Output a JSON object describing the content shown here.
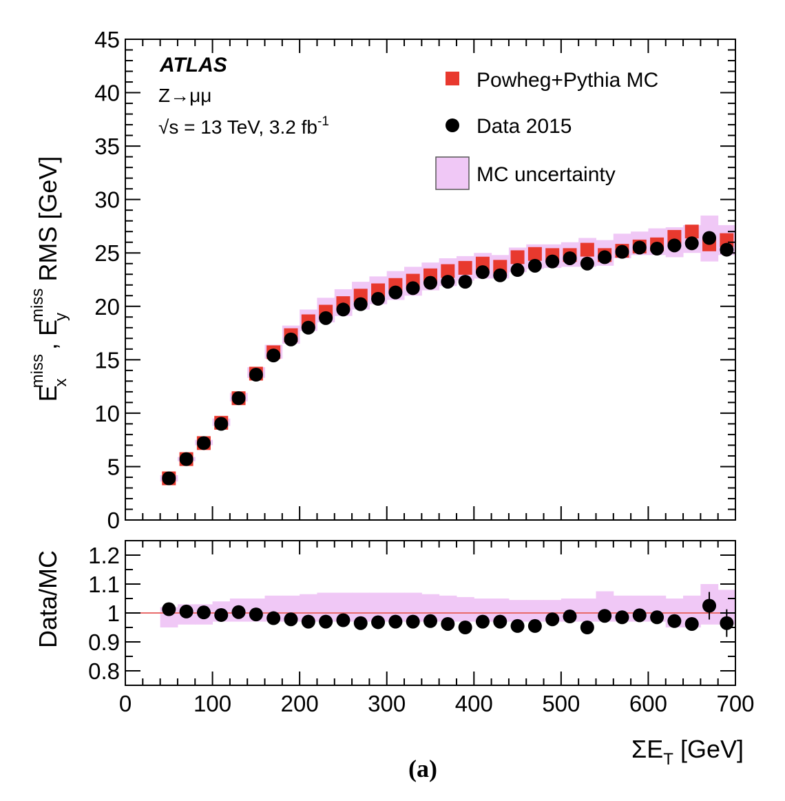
{
  "chart_data": [
    {
      "type": "scatter",
      "panel": "main",
      "ylabel": "E_x^miss , E_y^miss RMS [GeV]",
      "ylabel_parts": {
        "e1": "E",
        "e1_sub": "x",
        "e1_sup": "miss",
        "sep": ",",
        "e2": "E",
        "e2_sub": "y",
        "e2_sup": "miss",
        "suffix": "RMS [GeV]"
      },
      "xlim": [
        0,
        700
      ],
      "ylim": [
        0,
        45
      ],
      "x_ticks": [
        "0",
        "100",
        "200",
        "300",
        "400",
        "500",
        "600",
        "700"
      ],
      "y_ticks": [
        "0",
        "5",
        "10",
        "15",
        "20",
        "25",
        "30",
        "35",
        "40",
        "45"
      ],
      "x": [
        50,
        70,
        90,
        110,
        130,
        150,
        170,
        190,
        210,
        230,
        250,
        270,
        290,
        310,
        330,
        350,
        370,
        390,
        410,
        430,
        450,
        470,
        490,
        510,
        530,
        550,
        570,
        590,
        610,
        630,
        650,
        670,
        690
      ],
      "bin_width": 20,
      "annotations": {
        "experiment": "ATLAS",
        "process": "Z→μμ",
        "energy_prefix": "√s = 13 TeV, 3.2 fb",
        "energy_sup": "-1"
      },
      "series": [
        {
          "name": "Powheg+Pythia MC",
          "marker": "square",
          "color": "#e8392e",
          "values": [
            3.9,
            5.7,
            7.2,
            9.1,
            11.4,
            13.7,
            15.7,
            17.3,
            18.6,
            19.5,
            20.3,
            21.0,
            21.5,
            22.0,
            22.4,
            22.9,
            23.3,
            23.6,
            24.0,
            23.7,
            24.6,
            24.9,
            24.8,
            24.8,
            25.3,
            24.8,
            25.2,
            25.6,
            25.8,
            26.5,
            27.0,
            25.8,
            26.2
          ]
        },
        {
          "name": "Data 2015",
          "marker": "circle",
          "color": "#000000",
          "values": [
            3.9,
            5.7,
            7.2,
            9.0,
            11.4,
            13.6,
            15.4,
            16.9,
            18.0,
            18.9,
            19.7,
            20.2,
            20.7,
            21.3,
            21.7,
            22.2,
            22.3,
            22.3,
            23.2,
            22.9,
            23.4,
            23.8,
            24.2,
            24.5,
            24.0,
            24.6,
            25.1,
            25.5,
            25.4,
            25.7,
            25.9,
            26.4,
            25.3
          ]
        },
        {
          "name": "MC uncertainty",
          "marker": "band",
          "color": "#f0c8f6",
          "low": [
            3.6,
            5.5,
            7.0,
            8.8,
            11.1,
            13.3,
            15.1,
            16.5,
            17.7,
            18.5,
            19.1,
            19.7,
            20.2,
            20.6,
            21.0,
            21.5,
            21.9,
            22.4,
            22.6,
            22.6,
            23.2,
            23.5,
            23.6,
            23.7,
            23.7,
            23.8,
            24.5,
            24.8,
            24.8,
            24.6,
            25.0,
            24.2,
            24.8
          ],
          "high": [
            4.2,
            5.9,
            7.5,
            9.5,
            11.9,
            14.3,
            16.4,
            18.2,
            19.7,
            20.8,
            21.6,
            22.3,
            22.8,
            23.3,
            23.7,
            24.1,
            24.5,
            24.7,
            25.0,
            24.8,
            25.5,
            25.8,
            25.8,
            26.0,
            26.4,
            26.2,
            26.8,
            27.0,
            27.3,
            27.4,
            27.6,
            28.5,
            27.6
          ]
        }
      ],
      "legend": {
        "position": "top-right",
        "entries": [
          "Powheg+Pythia MC",
          "Data 2015",
          "MC uncertainty"
        ]
      }
    },
    {
      "type": "scatter",
      "panel": "ratio",
      "xlabel": "ΣE_T [GeV]",
      "xlabel_parts": {
        "main": "ΣE",
        "sub": "T",
        "suffix": "[GeV]"
      },
      "ylabel": "Data/MC",
      "xlim": [
        0,
        700
      ],
      "ylim": [
        0.75,
        1.25
      ],
      "y_ticks": [
        "0.8",
        "0.9",
        "1",
        "1.1",
        "1.2"
      ],
      "reference_line": 1.0,
      "reference_color": "#e86a6a",
      "x": [
        50,
        70,
        90,
        110,
        130,
        150,
        170,
        190,
        210,
        230,
        250,
        270,
        290,
        310,
        330,
        350,
        370,
        390,
        410,
        430,
        450,
        470,
        490,
        510,
        530,
        550,
        570,
        590,
        610,
        630,
        650,
        670,
        690
      ],
      "series": [
        {
          "name": "Data 2015",
          "values": [
            1.013,
            1.005,
            1.002,
            0.993,
            1.003,
            0.995,
            0.982,
            0.978,
            0.97,
            0.97,
            0.975,
            0.965,
            0.968,
            0.97,
            0.97,
            0.972,
            0.962,
            0.95,
            0.97,
            0.97,
            0.955,
            0.955,
            0.978,
            0.988,
            0.95,
            0.99,
            0.985,
            0.992,
            0.985,
            0.972,
            0.962,
            1.025,
            0.965
          ]
        },
        {
          "name": "MC uncertainty",
          "low": [
            0.95,
            0.96,
            0.96,
            0.97,
            0.97,
            0.97,
            0.97,
            0.97,
            0.97,
            0.97,
            0.97,
            0.97,
            0.97,
            0.97,
            0.97,
            0.97,
            0.97,
            0.97,
            0.97,
            0.97,
            0.97,
            0.97,
            0.97,
            0.97,
            0.97,
            0.97,
            0.97,
            0.97,
            0.97,
            0.95,
            0.95,
            0.96,
            0.96
          ],
          "high": [
            1.02,
            1.03,
            1.03,
            1.04,
            1.05,
            1.05,
            1.06,
            1.06,
            1.065,
            1.07,
            1.07,
            1.07,
            1.07,
            1.07,
            1.07,
            1.065,
            1.06,
            1.055,
            1.05,
            1.05,
            1.045,
            1.045,
            1.045,
            1.05,
            1.05,
            1.075,
            1.06,
            1.06,
            1.06,
            1.05,
            1.06,
            1.1,
            1.08
          ]
        }
      ]
    }
  ],
  "caption": "(a)"
}
